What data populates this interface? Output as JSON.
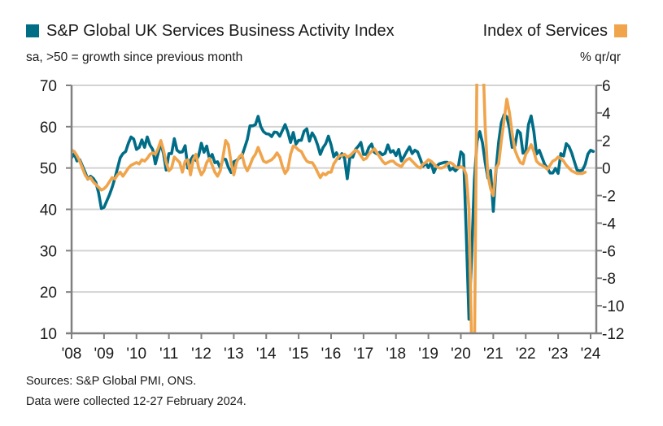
{
  "legend": {
    "left_label": "S&P Global UK Services Business Activity Index",
    "left_sub": "sa, >50 = growth since previous month",
    "right_label": "Index of Services",
    "right_sub": "% qr/qr"
  },
  "footer": {
    "sources": "Sources: S&P Global PMI, ONS.",
    "collected": "Data were collected 12-27 February 2024."
  },
  "colors": {
    "pmi": "#006d87",
    "ios": "#f0a44b",
    "axis": "#808080",
    "grid": "#d3d3d3"
  },
  "chart_data": {
    "type": "line",
    "title": "S&P Global UK Services Business Activity Index vs Index of Services",
    "xlabel": "",
    "x_tick_labels": [
      "'08",
      "'09",
      "'10",
      "'11",
      "'12",
      "'13",
      "'14",
      "'15",
      "'16",
      "'17",
      "'18",
      "'19",
      "'20",
      "'21",
      "'22",
      "'23",
      "'24"
    ],
    "x_range": [
      2008.0,
      2024.1
    ],
    "grid": true,
    "legend_position": "top",
    "y_left": {
      "label": "sa, >50 = growth since previous month",
      "range": [
        10,
        70
      ],
      "ticks": [
        10,
        20,
        30,
        40,
        50,
        60,
        70
      ]
    },
    "y_right": {
      "label": "% qr/qr",
      "range": [
        -12,
        6
      ],
      "ticks": [
        -12,
        -10,
        -8,
        -6,
        -4,
        -2,
        0,
        2,
        4,
        6
      ]
    },
    "series": [
      {
        "name": "S&P Global UK Services Business Activity Index",
        "axis": "left",
        "frequency": "monthly",
        "start": 2008.0,
        "values": [
          52.5,
          53.5,
          51.7,
          52.0,
          50.5,
          49.0,
          47.3,
          48.0,
          47.5,
          46.5,
          44.0,
          40.2,
          40.5,
          42.0,
          43.5,
          45.3,
          47.5,
          50.0,
          52.5,
          53.5,
          54.0,
          56.0,
          57.5,
          57.0,
          54.5,
          55.0,
          56.8,
          55.0,
          57.5,
          55.5,
          54.5,
          51.0,
          53.5,
          56.0,
          53.5,
          49.5,
          53.5,
          53.5,
          57.1,
          54.3,
          53.8,
          53.9,
          55.4,
          50.0,
          51.9,
          52.9,
          51.8,
          53.0,
          56.0,
          53.8,
          55.3,
          52.2,
          53.3,
          51.3,
          51.5,
          50.0,
          52.2,
          52.1,
          50.2,
          48.9,
          51.5,
          51.8,
          52.4,
          52.9,
          54.9,
          56.9,
          60.2,
          60.2,
          60.5,
          62.5,
          60.0,
          58.8,
          58.3,
          58.2,
          57.6,
          58.7,
          58.6,
          57.7,
          59.1,
          60.5,
          58.7,
          56.2,
          58.6,
          55.8,
          56.7,
          56.7,
          58.9,
          59.5,
          56.5,
          58.5,
          57.4,
          55.6,
          53.3,
          54.9,
          55.9,
          57.7,
          55.6,
          52.7,
          53.7,
          52.3,
          53.5,
          52.3,
          47.4,
          52.9,
          52.6,
          54.5,
          55.2,
          56.2,
          53.3,
          53.3,
          55.0,
          55.8,
          53.8,
          53.4,
          53.8,
          53.2,
          53.6,
          55.6,
          53.8,
          54.2,
          53.0,
          54.5,
          51.7,
          52.8,
          54.0,
          55.1,
          53.5,
          54.3,
          53.9,
          52.2,
          50.4,
          51.2,
          50.1,
          51.3,
          48.9,
          50.4,
          51.0,
          51.2,
          51.4,
          51.4,
          49.5,
          50.0,
          49.3,
          50.0,
          53.9,
          53.2,
          34.5,
          13.4,
          29.0,
          47.1,
          56.5,
          58.8,
          56.1,
          51.4,
          47.6,
          49.4,
          39.5,
          49.5,
          56.3,
          61.0,
          62.9,
          62.4,
          59.6,
          55.0,
          55.4,
          59.1,
          58.5,
          53.6,
          54.1,
          60.5,
          62.6,
          58.9,
          53.4,
          54.3,
          52.6,
          50.9,
          50.0,
          48.8,
          48.8,
          49.9,
          48.7,
          53.5,
          52.9,
          55.9,
          55.2,
          53.7,
          51.5,
          49.5,
          49.3,
          49.5,
          50.9,
          53.4,
          54.3,
          54.0
        ]
      },
      {
        "name": "Index of Services",
        "axis": "right",
        "frequency": "monthly (rolling 3m/3m)",
        "start": 2008.0,
        "values": [
          1.3,
          1.2,
          0.9,
          0.5,
          0.0,
          -0.5,
          -0.8,
          -0.7,
          -1.0,
          -1.2,
          -1.4,
          -1.6,
          -1.5,
          -1.3,
          -1.0,
          -0.7,
          -0.8,
          -0.5,
          -0.3,
          -0.6,
          -0.3,
          0.0,
          0.2,
          0.3,
          0.4,
          0.3,
          0.6,
          0.5,
          0.7,
          1.0,
          1.1,
          1.0,
          1.4,
          2.0,
          1.3,
          0.4,
          -0.2,
          0.0,
          0.8,
          0.6,
          0.4,
          -0.3,
          0.5,
          0.6,
          -0.5,
          0.6,
          1.0,
          0.0,
          -0.5,
          -0.2,
          0.4,
          0.7,
          0.2,
          -0.3,
          -0.6,
          -0.2,
          0.8,
          2.0,
          1.7,
          0.4,
          -0.5,
          0.4,
          0.8,
          1.0,
          0.2,
          -0.2,
          0.2,
          0.7,
          1.0,
          1.5,
          1.0,
          0.5,
          0.4,
          0.5,
          0.6,
          0.8,
          1.1,
          0.8,
          0.1,
          -0.4,
          -0.1,
          1.0,
          1.6,
          1.5,
          1.3,
          1.2,
          0.8,
          0.5,
          0.4,
          0.4,
          0.1,
          -0.3,
          -0.7,
          -0.4,
          -0.5,
          -0.3,
          -0.3,
          0.3,
          0.6,
          0.9,
          0.9,
          1.0,
          0.8,
          0.9,
          1.1,
          1.3,
          1.2,
          0.9,
          0.6,
          0.7,
          1.0,
          1.2,
          1.4,
          1.1,
          0.8,
          0.5,
          0.3,
          0.4,
          0.5,
          0.5,
          0.3,
          0.2,
          0.1,
          0.4,
          0.6,
          0.7,
          0.5,
          0.3,
          0.1,
          0.0,
          0.3,
          0.4,
          0.6,
          0.5,
          0.3,
          0.1,
          0.0,
          0.0,
          0.1,
          0.3,
          0.4,
          0.3,
          0.1,
          0.0,
          0.1,
          0.0,
          -0.5,
          -3.0,
          -13.0,
          -14.5,
          8.0,
          15.0,
          9.0,
          3.0,
          -0.5,
          -1.5,
          -2.0,
          0.0,
          0.3,
          2.0,
          3.5,
          5.0,
          4.0,
          2.5,
          1.3,
          0.8,
          0.4,
          0.3,
          1.0,
          1.3,
          1.7,
          1.2,
          0.5,
          0.3,
          0.2,
          0.1,
          -0.1,
          0.2,
          0.5,
          0.6,
          0.8,
          0.7,
          0.5,
          0.2,
          0.0,
          -0.2,
          -0.3,
          -0.4,
          -0.4,
          -0.4,
          -0.3
        ]
      }
    ]
  }
}
